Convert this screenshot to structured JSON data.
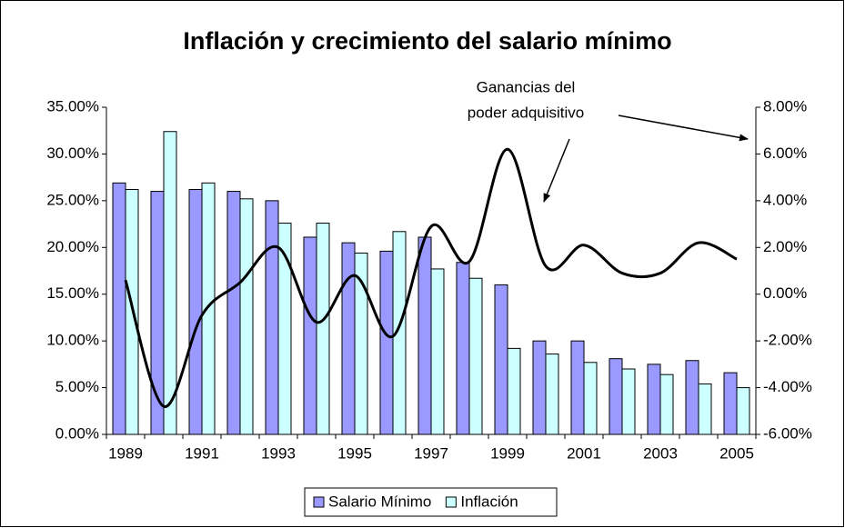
{
  "chart_data": {
    "type": "bar_line",
    "title": "Inflación y crecimiento del salario mínimo",
    "annotation": [
      "Ganancias del",
      "poder adquisitivo"
    ],
    "categories": [
      "1989",
      null,
      "1991",
      null,
      "1993",
      null,
      "1995",
      null,
      "1997",
      null,
      "1999",
      null,
      "2001",
      null,
      "2003",
      null,
      "2005"
    ],
    "series": [
      {
        "name": "Salario Mínimo",
        "type": "bar",
        "color": "#9999ff",
        "values": [
          26.9,
          26.0,
          26.2,
          26.0,
          25.0,
          21.1,
          20.5,
          19.6,
          21.1,
          18.4,
          16.0,
          10.0,
          10.0,
          8.1,
          7.5,
          7.9,
          6.6
        ]
      },
      {
        "name": "Inflación",
        "type": "bar",
        "color": "#ccffff",
        "values": [
          26.2,
          32.4,
          26.9,
          25.2,
          22.6,
          22.6,
          19.4,
          21.7,
          17.7,
          16.7,
          9.2,
          8.6,
          7.7,
          7.0,
          6.4,
          5.4,
          5.0
        ]
      },
      {
        "type": "line",
        "axis": "y2",
        "color": "#000000",
        "values": [
          0.6,
          -4.8,
          -0.9,
          0.5,
          2.0,
          -1.2,
          0.8,
          -1.8,
          2.9,
          1.4,
          6.2,
          1.2,
          2.1,
          0.9,
          0.9,
          2.2,
          1.5
        ]
      }
    ],
    "ylim": [
      0,
      35
    ],
    "yticks": [
      {
        "value": 0,
        "label": "0.00%"
      },
      {
        "value": 5,
        "label": "5.00%"
      },
      {
        "value": 10,
        "label": "10.00%"
      },
      {
        "value": 15,
        "label": "15.00%"
      },
      {
        "value": 20,
        "label": "20.00%"
      },
      {
        "value": 25,
        "label": "25.00%"
      },
      {
        "value": 30,
        "label": "30.00%"
      },
      {
        "value": 35,
        "label": "35.00%"
      }
    ],
    "y2lim": [
      -6,
      8
    ],
    "y2ticks": [
      {
        "value": -6,
        "label": "-6.00%"
      },
      {
        "value": -4,
        "label": "-4.00%"
      },
      {
        "value": -2,
        "label": "-2.00%"
      },
      {
        "value": 0,
        "label": "0.00%"
      },
      {
        "value": 2,
        "label": "2.00%"
      },
      {
        "value": 4,
        "label": "4.00%"
      },
      {
        "value": 6,
        "label": "6.00%"
      },
      {
        "value": 8,
        "label": "8.00%"
      }
    ],
    "grid": false,
    "legend": "bottom"
  }
}
